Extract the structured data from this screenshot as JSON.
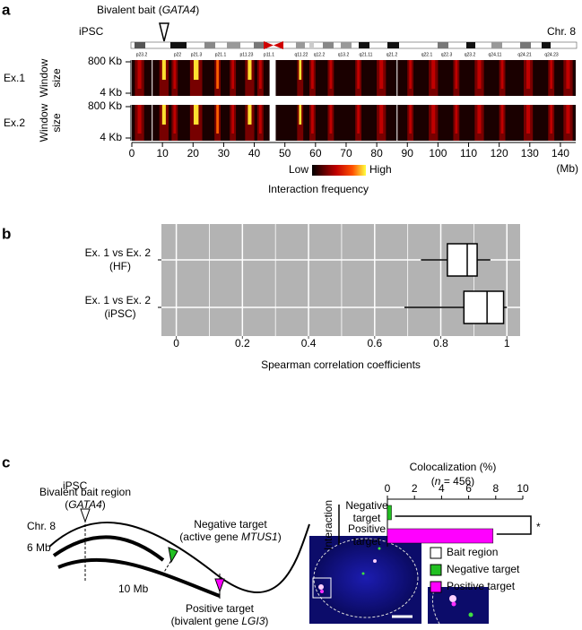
{
  "panel_labels": [
    "a",
    "b",
    "c"
  ],
  "chart_data": [
    {
      "type": "heatmap",
      "condition": "iPSC",
      "bait_label": [
        "Bivalent bait (",
        "GATA4",
        ")"
      ],
      "chromosome": "Chr. 8",
      "bands": [
        "p23.2",
        "p22",
        "p21.3",
        "p21.1",
        "p11.23",
        "p11.1",
        "q11.22",
        "q12.2",
        "q13.2",
        "q21.11",
        "q21.2",
        "q22.1",
        "q22.3",
        "q23.2",
        "q24.11",
        "q24.21",
        "q24.23"
      ],
      "rows": [
        {
          "name": "Ex.1",
          "axis_label": [
            "Window",
            "size"
          ],
          "ytick_labels": [
            "800 Kb",
            "4 Kb"
          ]
        },
        {
          "name": "Ex.2",
          "axis_label": [
            "Window",
            "size"
          ],
          "ytick_labels": [
            "800 Kb",
            "4 Kb"
          ]
        }
      ],
      "xlim": [
        0,
        145
      ],
      "xticks": [
        0,
        10,
        20,
        30,
        40,
        50,
        60,
        70,
        80,
        90,
        100,
        110,
        120,
        130,
        140
      ],
      "xlabel": "(Mb)",
      "colorbar": {
        "low": "Low",
        "high": "High",
        "label": "Interaction frequency"
      }
    },
    {
      "type": "box",
      "categories": [
        [
          "Ex. 1 vs Ex. 2",
          "(HF)"
        ],
        [
          "Ex. 1 vs Ex. 2",
          "(iPSC)"
        ]
      ],
      "min": [
        0.74,
        0.69
      ],
      "q1": [
        0.82,
        0.87
      ],
      "median": [
        0.88,
        0.94
      ],
      "q3": [
        0.91,
        0.99
      ],
      "max": [
        0.95,
        1.0
      ],
      "xlim": [
        -0.045,
        1.04
      ],
      "xticks": [
        0,
        0.2,
        0.4,
        0.6,
        0.8,
        1
      ],
      "minor_xticks": [
        0.1,
        0.3,
        0.5,
        0.7,
        0.9
      ],
      "xlabel": "Spearman correlation coefficients",
      "grid": true
    },
    {
      "type": "bar",
      "title": "Colocalization (%)",
      "subtitle": [
        "(",
        "n",
        " = 456)"
      ],
      "categories": [
        [
          "Negative",
          "target"
        ],
        [
          "Positive",
          "target"
        ]
      ],
      "values": [
        0.3,
        7.8
      ],
      "colors": [
        "#22c022",
        "#ff00ff"
      ],
      "xlim": [
        0,
        10
      ],
      "xticks": [
        0,
        2,
        4,
        6,
        8,
        10
      ],
      "axis_label": "Interaction",
      "annotation": "*"
    }
  ],
  "diagram": {
    "condition": "iPSC",
    "bait": [
      "Bivalent bait region",
      "(",
      "GATA4",
      ")"
    ],
    "chromosome": "Chr. 8",
    "distance_negative": "6 Mb",
    "distance_positive": "10 Mb",
    "negative": [
      "Negative target",
      "(active gene ",
      "MTUS1",
      ")"
    ],
    "positive": [
      "Positive target",
      "(bivalent gene ",
      "LGI3",
      ")"
    ]
  },
  "legend": [
    {
      "name": "Bait region",
      "color": "#ffffff"
    },
    {
      "name": "Negative target",
      "color": "#22c022"
    },
    {
      "name": "Positive target",
      "color": "#ff00ff"
    }
  ]
}
